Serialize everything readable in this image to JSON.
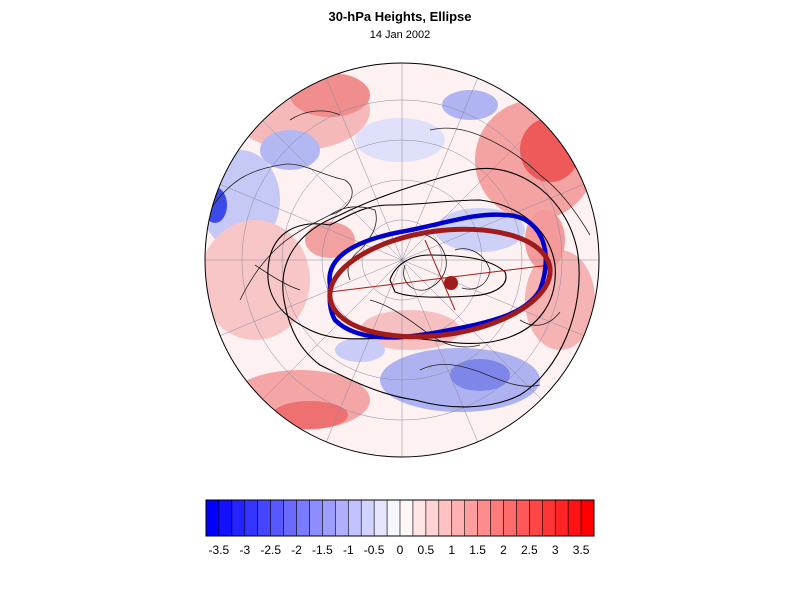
{
  "header": {
    "title": "30-hPa Heights, Ellipse",
    "date": "14 Jan 2002"
  },
  "map": {
    "projection": "north-polar-stereographic",
    "field": "standardized-height-anomaly",
    "ellipses": [
      {
        "name": "",
        "color": "#0000cc"
      },
      {
        "name": "",
        "color": "#a01c1c"
      }
    ],
    "centroid_color": "#a01c1c",
    "contour_color": "#000000"
  },
  "colorbar": {
    "min": -3.75,
    "max": 3.75,
    "step": 0.25,
    "low_color": "#0000ff",
    "mid_color": "#ffffff",
    "high_color": "#ff0000",
    "tick_labels": [
      "-3.5",
      "-3",
      "-2.5",
      "-2",
      "-1.5",
      "-1",
      "-0.5",
      "0",
      "0.5",
      "1",
      "1.5",
      "2",
      "2.5",
      "3",
      "3.5"
    ]
  }
}
